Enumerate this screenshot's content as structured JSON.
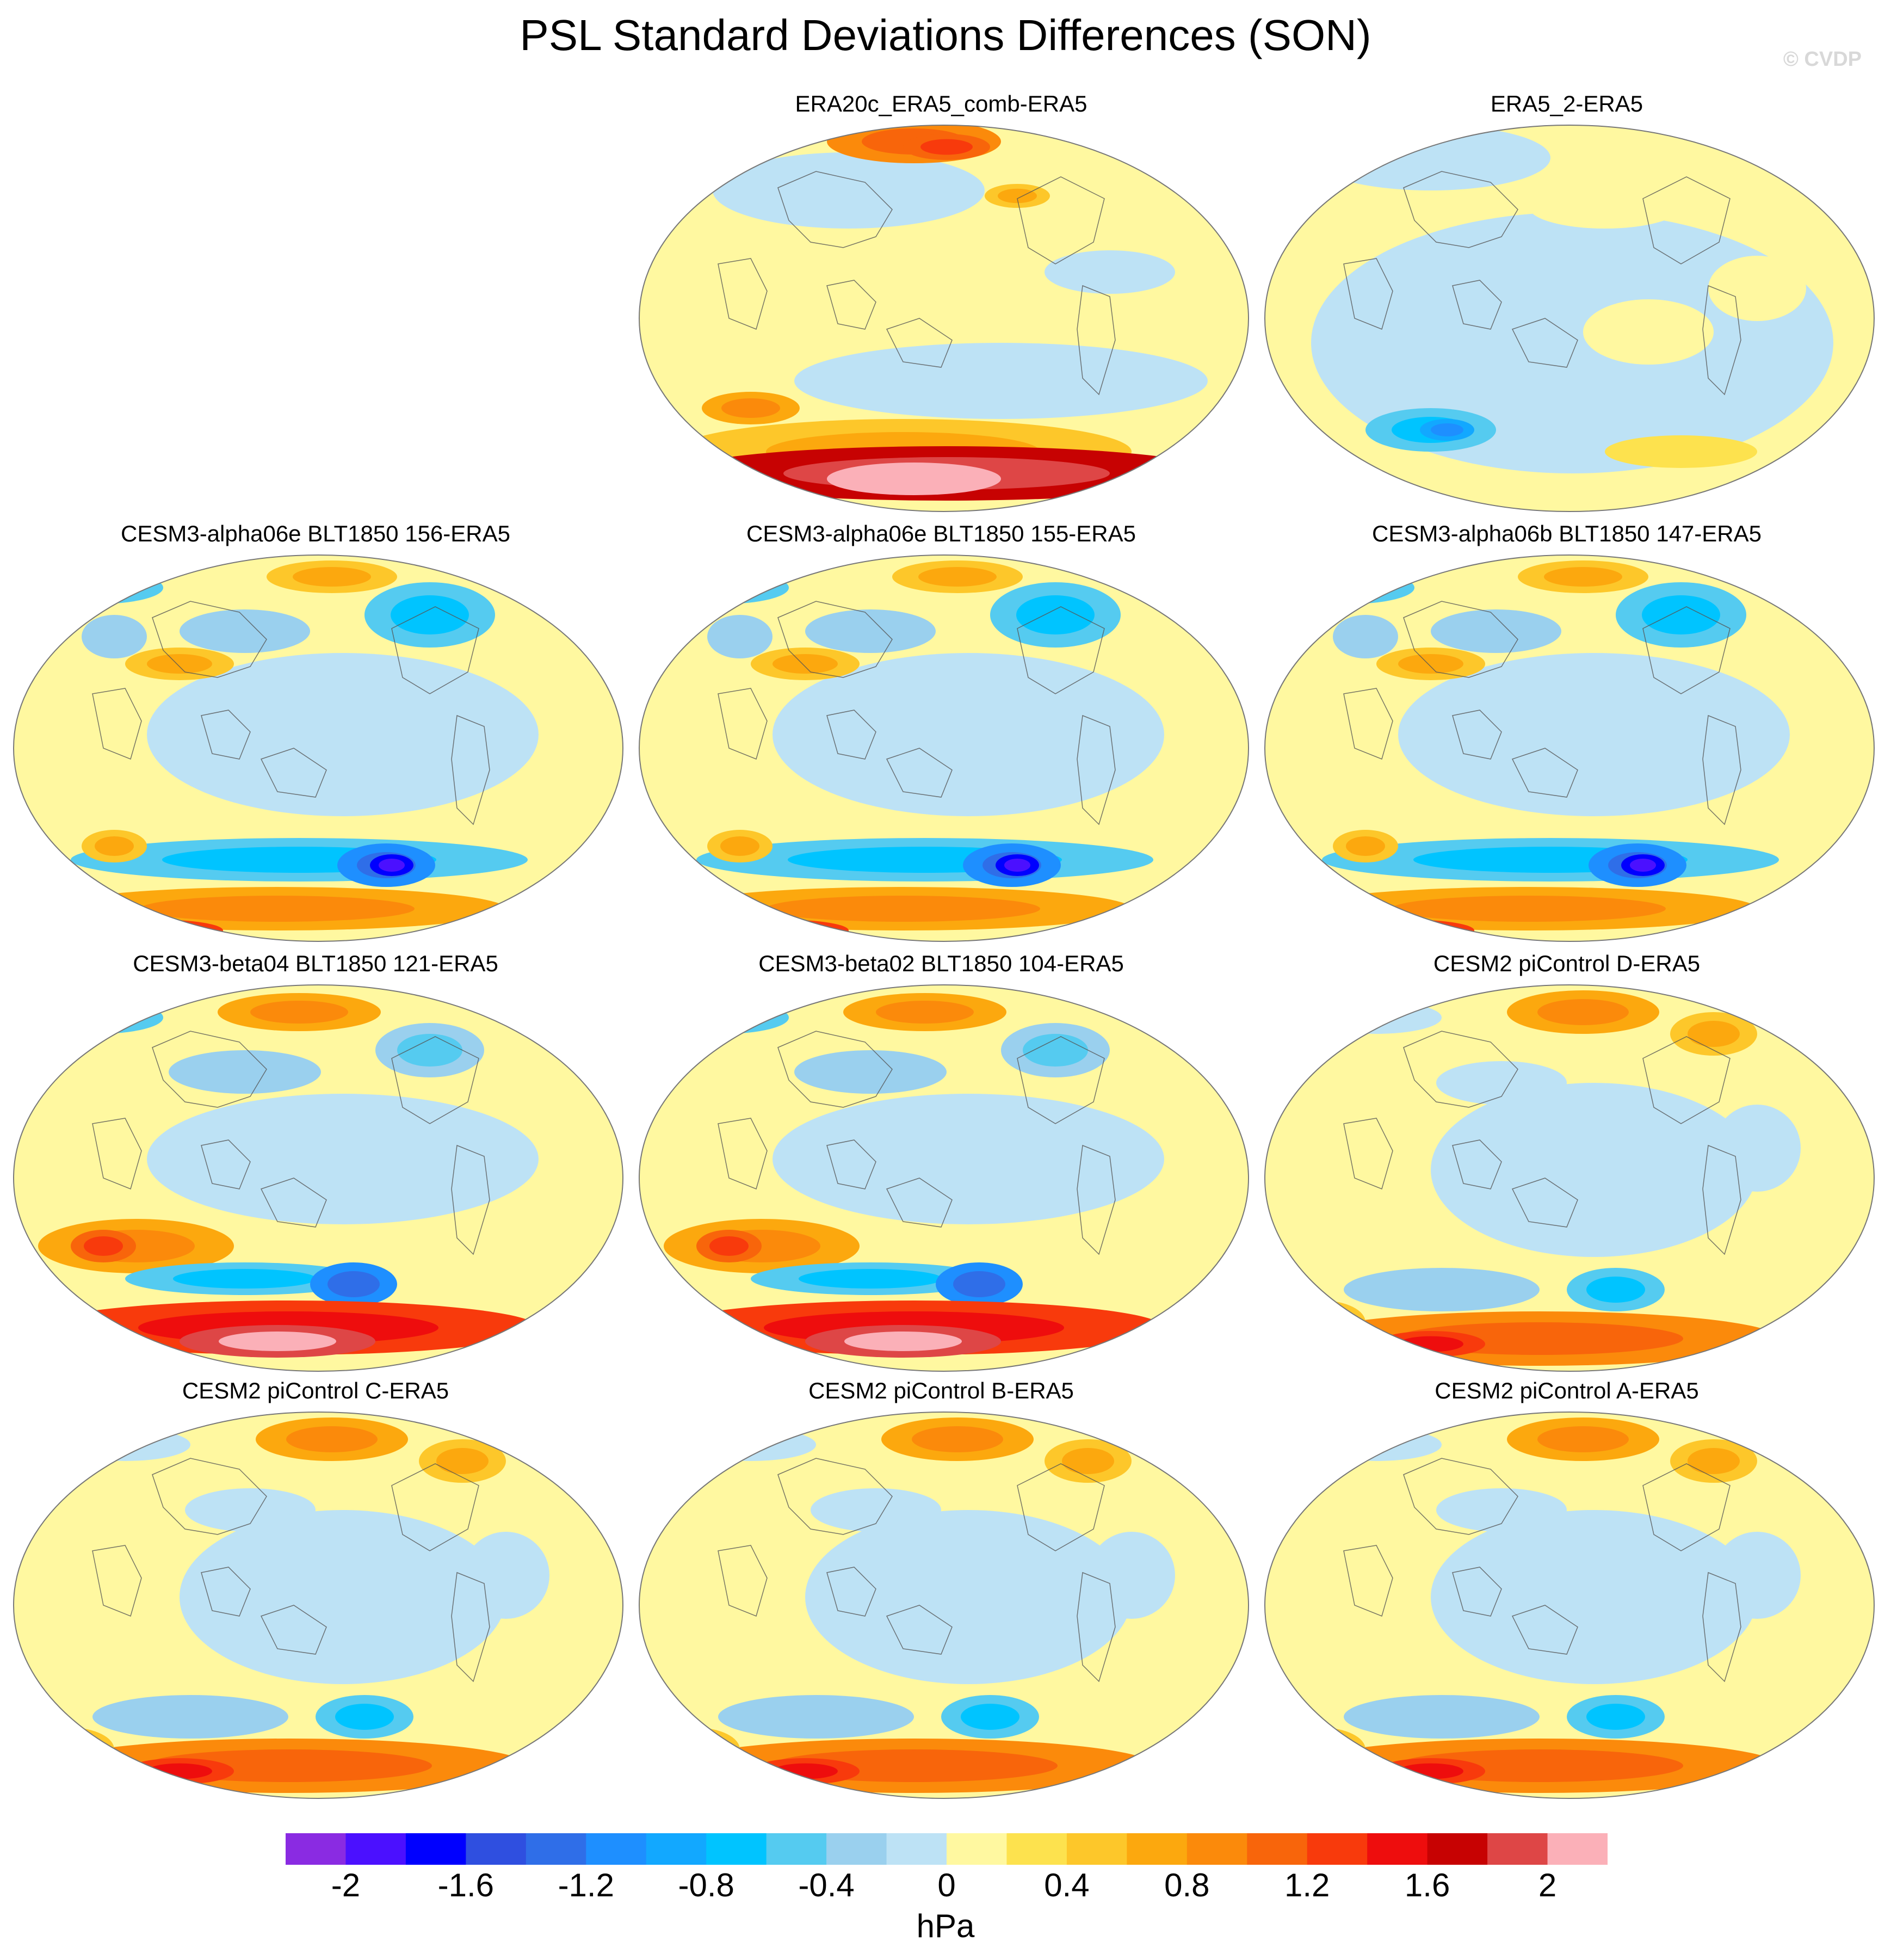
{
  "title": "PSL Standard Deviations Differences (SON)",
  "watermark": "© CVDP",
  "panels": [
    {
      "title": "ERA20c_ERA5_comb-ERA5",
      "pattern": "era20c"
    },
    {
      "title": "ERA5_2-ERA5",
      "pattern": "era5"
    },
    {
      "title": "CESM3-alpha06e BLT1850 156-ERA5",
      "pattern": "model"
    },
    {
      "title": "CESM3-alpha06e BLT1850 155-ERA5",
      "pattern": "model"
    },
    {
      "title": "CESM3-alpha06b BLT1850 147-ERA5",
      "pattern": "model"
    },
    {
      "title": "CESM3-beta04 BLT1850 121-ERA5",
      "pattern": "beta"
    },
    {
      "title": "CESM3-beta02 BLT1850 104-ERA5",
      "pattern": "beta"
    },
    {
      "title": "CESM2 piControl D-ERA5",
      "pattern": "cesm2"
    },
    {
      "title": "CESM2 piControl C-ERA5",
      "pattern": "cesm2"
    },
    {
      "title": "CESM2 piControl B-ERA5",
      "pattern": "cesm2"
    },
    {
      "title": "CESM2 piControl A-ERA5",
      "pattern": "cesm2"
    }
  ],
  "colorbar": {
    "unit": "hPa",
    "min": -2.2,
    "max": 2.2,
    "step": 0.2,
    "tick_labels": [
      "-2",
      "-1.6",
      "-1.2",
      "-0.8",
      "-0.4",
      "0",
      "0.4",
      "0.8",
      "1.2",
      "1.6",
      "2"
    ],
    "tick_values": [
      -2,
      -1.6,
      -1.2,
      -0.8,
      -0.4,
      0,
      0.4,
      0.8,
      1.2,
      1.6,
      2
    ],
    "colors": [
      "#8a2be2",
      "#4b10ff",
      "#0000ff",
      "#2f4fe0",
      "#2f6ee8",
      "#1e8fff",
      "#12a8ff",
      "#00c4ff",
      "#55cbf0",
      "#9ad0ee",
      "#bde2f5",
      "#fff8a0",
      "#fde24e",
      "#fdc72a",
      "#fca80e",
      "#fb8a0b",
      "#f8650b",
      "#f83a0c",
      "#ee0d0d",
      "#c70202",
      "#de4646",
      "#fbb0b8"
    ]
  }
}
